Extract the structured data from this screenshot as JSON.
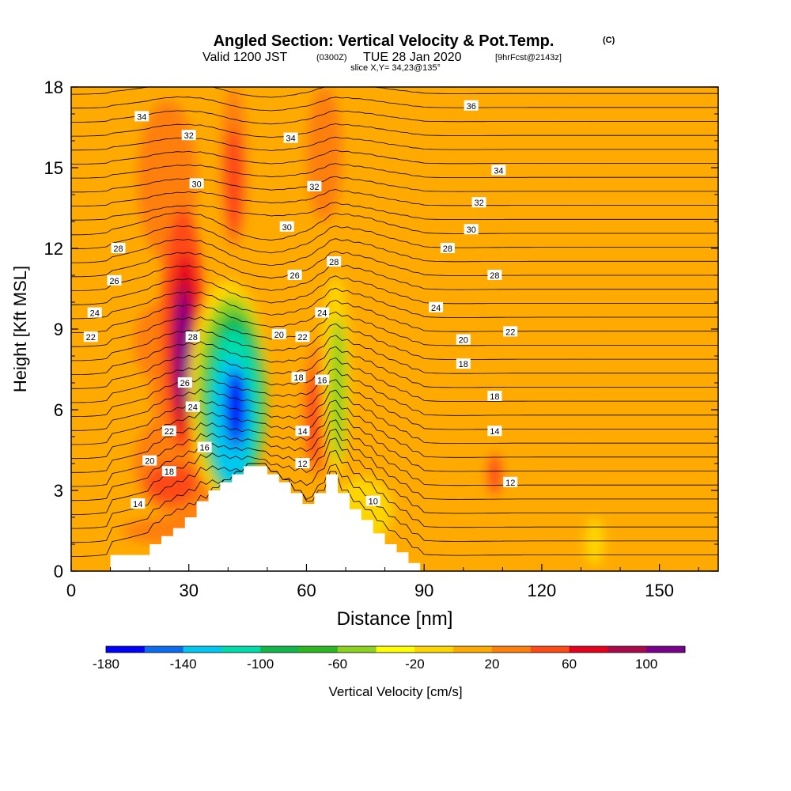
{
  "title": {
    "main": "Angled Section: Vertical Velocity & Pot.Temp.",
    "main_tag": "(C)",
    "valid_prefix": "Valid 1200 JST",
    "valid_zulu": "(0300Z)",
    "valid_date": "TUE 28 Jan 2020",
    "forecast_tag": "[9hrFcst@2143z]",
    "slice": "slice X,Y= 34,23@135°"
  },
  "colors": {
    "background_field": "#FFAA00",
    "terrain": "#FFFFFF",
    "contour": "#000000",
    "frame": "#000000"
  },
  "chart_data": {
    "type": "heatmap",
    "xlabel": "Distance [nm]",
    "ylabel": "Height [Kft MSL]",
    "xlim": [
      0,
      165
    ],
    "ylim": [
      0,
      18
    ],
    "x_ticks": [
      0,
      30,
      60,
      90,
      120,
      150
    ],
    "y_ticks": [
      0,
      3,
      6,
      9,
      12,
      15,
      18
    ],
    "grid": false,
    "colorbar": {
      "label": "Vertical Velocity [cm/s]",
      "tick_labels": [
        "-180",
        "-140",
        "-100",
        "-60",
        "-20",
        "20",
        "60",
        "100"
      ],
      "tick_values": [
        -180,
        -140,
        -100,
        -60,
        -20,
        20,
        60,
        100
      ],
      "min": -180,
      "max": 120,
      "step": 20,
      "colors": [
        "#0000FF",
        "#0A6CF0",
        "#00C8F0",
        "#00DCAA",
        "#10B84A",
        "#2CB820",
        "#8CD21E",
        "#FFFF00",
        "#FFD500",
        "#FFAA00",
        "#FF7F0A",
        "#FF4A14",
        "#E6001E",
        "#AA0A4A",
        "#78008C"
      ]
    },
    "terrain_profile": {
      "x": [
        0,
        10,
        10,
        20,
        20,
        23,
        23,
        26,
        26,
        29,
        29,
        32,
        32,
        35,
        35,
        38,
        38,
        41,
        41,
        44,
        44,
        47,
        47,
        50,
        50,
        53,
        53,
        56,
        56,
        59,
        59,
        62,
        62,
        65,
        65,
        68,
        68,
        71,
        71,
        74,
        74,
        77,
        77,
        80,
        80,
        83,
        83,
        86,
        86,
        89,
        89,
        165
      ],
      "y": [
        0,
        0,
        0.6,
        0.6,
        1.0,
        1.0,
        1.3,
        1.3,
        1.6,
        1.6,
        2.0,
        2.0,
        2.6,
        2.6,
        3.0,
        3.0,
        3.3,
        3.3,
        3.6,
        3.6,
        3.9,
        3.9,
        3.9,
        3.9,
        3.6,
        3.6,
        3.3,
        3.3,
        2.9,
        2.9,
        2.5,
        2.5,
        2.9,
        2.9,
        3.6,
        3.6,
        2.9,
        2.9,
        2.3,
        2.3,
        1.9,
        1.9,
        1.4,
        1.4,
        1.0,
        1.0,
        0.7,
        0.7,
        0.3,
        0.3,
        0,
        0
      ]
    },
    "velocity_cells": [
      {
        "x": [
          5,
          14
        ],
        "y": [
          9,
          13
        ],
        "value": 10
      },
      {
        "x": [
          100,
          132
        ],
        "y": [
          0.5,
          17.5
        ],
        "value": 10
      },
      {
        "x": [
          96,
          132
        ],
        "y": [
          12,
          18
        ],
        "value": 0
      },
      {
        "x": [
          0,
          14
        ],
        "y": [
          14,
          16
        ],
        "value": 0
      },
      {
        "x": [
          13,
          40
        ],
        "y": [
          1,
          2
        ],
        "value": 30
      },
      {
        "x": [
          0,
          10
        ],
        "y": [
          9.5,
          18
        ],
        "value": 0
      },
      {
        "x": [
          16,
          30
        ],
        "y": [
          7,
          10
        ],
        "value": 30
      },
      {
        "x": [
          16,
          42
        ],
        "y": [
          2,
          6
        ],
        "value": 30
      },
      {
        "x": [
          19,
          32
        ],
        "y": [
          2.5,
          4
        ],
        "value": 50
      },
      {
        "x": [
          17,
          32
        ],
        "y": [
          11.5,
          17.5
        ],
        "value": 30
      },
      {
        "x": [
          20,
          37
        ],
        "y": [
          4,
          11
        ],
        "value": 30
      },
      {
        "x": [
          23,
          34
        ],
        "y": [
          4.5,
          13.5
        ],
        "value": 50
      },
      {
        "x": [
          25,
          33
        ],
        "y": [
          5,
          11.8
        ],
        "value": 70
      },
      {
        "x": [
          26,
          31
        ],
        "y": [
          5.6,
          10.8
        ],
        "value": 90
      },
      {
        "x": [
          27,
          30
        ],
        "y": [
          6.2,
          10.4
        ],
        "value": 110
      },
      {
        "x": [
          36,
          52
        ],
        "y": [
          5,
          18
        ],
        "value": 0
      },
      {
        "x": [
          38,
          45
        ],
        "y": [
          12,
          18
        ],
        "value": 30
      },
      {
        "x": [
          39,
          44
        ],
        "y": [
          12.5,
          16.5
        ],
        "value": 50
      },
      {
        "x": [
          51,
          60
        ],
        "y": [
          14,
          18
        ],
        "value": 0
      },
      {
        "x": [
          60,
          69
        ],
        "y": [
          13,
          18
        ],
        "value": 30
      },
      {
        "x": [
          56,
          76
        ],
        "y": [
          4,
          11
        ],
        "value": 10
      },
      {
        "x": [
          59,
          67
        ],
        "y": [
          3.5,
          8.5
        ],
        "value": 30
      },
      {
        "x": [
          60,
          64
        ],
        "y": [
          4,
          7.5
        ],
        "value": 50
      },
      {
        "x": [
          64,
          71
        ],
        "y": [
          3.5,
          11
        ],
        "value": -20
      },
      {
        "x": [
          66,
          70
        ],
        "y": [
          4,
          9.5
        ],
        "value": -50
      },
      {
        "x": [
          30,
          50
        ],
        "y": [
          2.6,
          10.8
        ],
        "value": -20
      },
      {
        "x": [
          32,
          50
        ],
        "y": [
          2.8,
          10.2
        ],
        "value": -50
      },
      {
        "x": [
          34,
          49
        ],
        "y": [
          2.9,
          9.6
        ],
        "value": -90
      },
      {
        "x": [
          35,
          48
        ],
        "y": [
          3.0,
          9.0
        ],
        "value": -110
      },
      {
        "x": [
          36,
          46
        ],
        "y": [
          3.2,
          8.0
        ],
        "value": -130
      },
      {
        "x": [
          39,
          45
        ],
        "y": [
          4.5,
          7.5
        ],
        "value": -150
      },
      {
        "x": [
          40,
          44
        ],
        "y": [
          5.0,
          7.3
        ],
        "value": -170
      },
      {
        "x": [
          67,
          82
        ],
        "y": [
          1,
          3.5
        ],
        "value": -10
      },
      {
        "x": [
          106,
          110
        ],
        "y": [
          2.8,
          4.4
        ],
        "value": 50
      },
      {
        "x": [
          131,
          136
        ],
        "y": [
          0.2,
          2
        ],
        "value": -10
      }
    ],
    "contour_labels": [
      {
        "text": "36",
        "x": 102,
        "y": 17.3
      },
      {
        "text": "34",
        "x": 18,
        "y": 16.9
      },
      {
        "text": "32",
        "x": 30,
        "y": 16.2
      },
      {
        "text": "34",
        "x": 56,
        "y": 16.1
      },
      {
        "text": "34",
        "x": 109,
        "y": 14.9
      },
      {
        "text": "30",
        "x": 32,
        "y": 14.4
      },
      {
        "text": "32",
        "x": 62,
        "y": 14.3
      },
      {
        "text": "32",
        "x": 104,
        "y": 13.7
      },
      {
        "text": "30",
        "x": 55,
        "y": 12.8
      },
      {
        "text": "30",
        "x": 102,
        "y": 12.7
      },
      {
        "text": "28",
        "x": 12,
        "y": 12.0
      },
      {
        "text": "28",
        "x": 96,
        "y": 12.0
      },
      {
        "text": "28",
        "x": 67,
        "y": 11.5
      },
      {
        "text": "28",
        "x": 108,
        "y": 11.0
      },
      {
        "text": "26",
        "x": 11,
        "y": 10.8
      },
      {
        "text": "26",
        "x": 57,
        "y": 11.0
      },
      {
        "text": "24",
        "x": 6,
        "y": 9.6
      },
      {
        "text": "24",
        "x": 93,
        "y": 9.8
      },
      {
        "text": "24",
        "x": 64,
        "y": 9.6
      },
      {
        "text": "22",
        "x": 5,
        "y": 8.7
      },
      {
        "text": "28",
        "x": 31,
        "y": 8.7
      },
      {
        "text": "20",
        "x": 53,
        "y": 8.8
      },
      {
        "text": "22",
        "x": 59,
        "y": 8.7
      },
      {
        "text": "22",
        "x": 112,
        "y": 8.9
      },
      {
        "text": "20",
        "x": 100,
        "y": 8.6
      },
      {
        "text": "18",
        "x": 100,
        "y": 7.7
      },
      {
        "text": "26",
        "x": 29,
        "y": 7.0
      },
      {
        "text": "18",
        "x": 58,
        "y": 7.2
      },
      {
        "text": "16",
        "x": 64,
        "y": 7.1
      },
      {
        "text": "24",
        "x": 31,
        "y": 6.1
      },
      {
        "text": "18",
        "x": 108,
        "y": 6.5
      },
      {
        "text": "22",
        "x": 25,
        "y": 5.2
      },
      {
        "text": "14",
        "x": 59,
        "y": 5.2
      },
      {
        "text": "14",
        "x": 108,
        "y": 5.2
      },
      {
        "text": "16",
        "x": 34,
        "y": 4.6
      },
      {
        "text": "20",
        "x": 20,
        "y": 4.1
      },
      {
        "text": "18",
        "x": 25,
        "y": 3.7
      },
      {
        "text": "12",
        "x": 59,
        "y": 4.0
      },
      {
        "text": "12",
        "x": 112,
        "y": 3.3
      },
      {
        "text": "10",
        "x": 77,
        "y": 2.6
      },
      {
        "text": "14",
        "x": 17,
        "y": 2.5
      }
    ]
  }
}
